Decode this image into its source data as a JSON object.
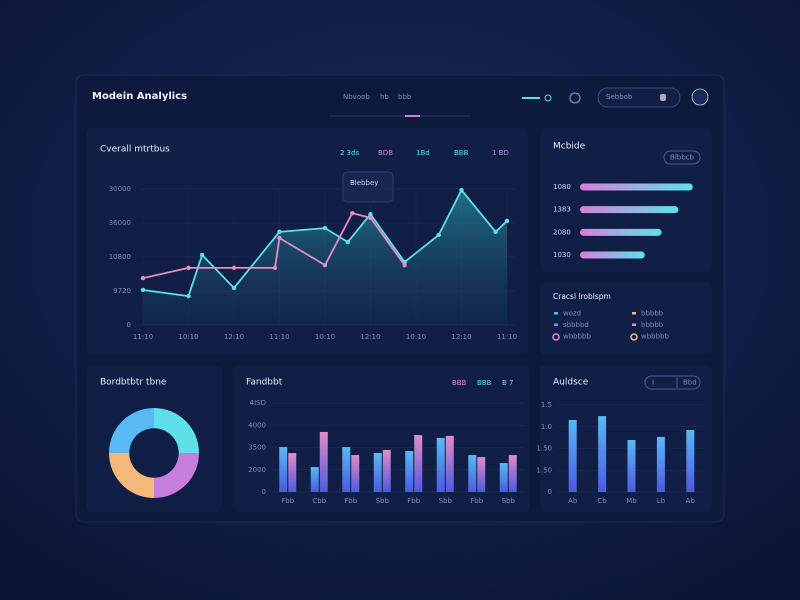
{
  "header": {
    "title": "Modein Analylics",
    "nav": [
      "Nbvoob",
      "hb",
      "bbb"
    ],
    "search": "Sebbob"
  },
  "overview": {
    "title": "Cverall mtrtbus",
    "legend": [
      {
        "name": "2 3ds",
        "color": "#5ee0ea"
      },
      {
        "name": "BDB",
        "color": "#c77ddb"
      },
      {
        "name": "1Bd",
        "color": "#5ee0ea"
      },
      {
        "name": "BBB",
        "color": "#5ee0ea"
      },
      {
        "name": "1 BD",
        "color": "#c77ddb"
      }
    ],
    "tooltip": "Blebbey",
    "chart": {
      "type": "line",
      "xlim": [
        0,
        8
      ],
      "ylim": [
        0,
        4
      ],
      "xticks": [
        {
          "value": 0,
          "label": "11:10"
        },
        {
          "value": 1,
          "label": "10:10"
        },
        {
          "value": 2,
          "label": "12:10"
        },
        {
          "value": 3,
          "label": "11:10"
        },
        {
          "value": 4,
          "label": "10:10"
        },
        {
          "value": 5,
          "label": "12:10"
        },
        {
          "value": 6,
          "label": "10:10"
        },
        {
          "value": 7,
          "label": "12:10"
        },
        {
          "value": 8,
          "label": "11:10"
        }
      ],
      "yticks": [
        0,
        {
          "value": 1,
          "label": "9720"
        },
        {
          "value": 2,
          "label": "10800"
        },
        {
          "value": 3,
          "label": "36000"
        },
        {
          "value": 4,
          "label": "30000"
        }
      ],
      "grid": true,
      "series": [
        {
          "color": "#5ee0ea",
          "area": true,
          "x": [
            0,
            1,
            1.3,
            2,
            3,
            4,
            4.5,
            5,
            5.75,
            6.5,
            7,
            7.75,
            8
          ],
          "values": [
            1.03,
            0.85,
            2.06,
            1.09,
            2.74,
            2.85,
            2.44,
            3.26,
            1.85,
            2.65,
            3.97,
            2.74,
            3.06
          ]
        },
        {
          "color": "#e58bc5",
          "x": [
            0,
            1,
            2,
            2.9,
            3,
            4,
            4.6,
            5,
            5.75
          ],
          "values": [
            1.38,
            1.68,
            1.68,
            1.68,
            2.56,
            1.76,
            3.29,
            3.15,
            1.76
          ]
        }
      ]
    }
  },
  "progress": {
    "title": "Mcbide",
    "button": "Blbbcb",
    "chart": {
      "type": "bar",
      "orientation": "horizontal",
      "xlim": [
        0,
        100
      ],
      "colors": [
        "#d77fd8",
        "#5ee0ea"
      ],
      "categories": [
        "1080",
        "1383",
        "2080",
        "1030"
      ],
      "values": [
        94,
        82,
        68,
        54
      ]
    }
  },
  "breakdown": {
    "title": "Cracsl lroblspm",
    "items": [
      {
        "label": "wozd",
        "color": "#5ab8f5"
      },
      {
        "label": "bbbbb",
        "color": "#f4b87a"
      },
      {
        "label": "sbbbbd",
        "color": "#7b8cf0"
      },
      {
        "label": "bbbbb",
        "color": "#e58bc5"
      },
      {
        "label": "wbbbbb",
        "color": "#e58bc5",
        "ring": true
      },
      {
        "label": "wbbbbb",
        "color": "#f4b87a",
        "ring": true
      }
    ]
  },
  "distribution": {
    "title": "Bordbtbtr tbne",
    "chart": {
      "type": "pie",
      "donut": true,
      "values": [
        25,
        25,
        25,
        25
      ],
      "colors": [
        "#5ee0ea",
        "#c77ddb",
        "#f4b87a",
        "#5ab8f5"
      ]
    }
  },
  "performance": {
    "title": "Fandbbt",
    "legend": [
      {
        "name": "BBB",
        "color": "#e58bc5"
      },
      {
        "name": "BBB",
        "color": "#5ee0ea"
      },
      {
        "name": "B 7",
        "color": "#5ee0ea"
      }
    ],
    "chart": {
      "type": "bar",
      "ylim": [
        0,
        4
      ],
      "yticks": [
        0,
        {
          "value": 1,
          "label": "2000"
        },
        {
          "value": 2,
          "label": "3500"
        },
        {
          "value": 3,
          "label": "4000"
        },
        {
          "value": 4,
          "label": "4ISD"
        }
      ],
      "categories": [
        "Fbb",
        "Cbb",
        "Fbb",
        "Sbb",
        "Fbb",
        "Sbb",
        "Fbb",
        "Sbb"
      ],
      "series": [
        {
          "color": "#5ab8f5",
          "values": [
            2.02,
            1.12,
            2.02,
            1.75,
            1.84,
            2.43,
            1.66,
            1.3
          ]
        },
        {
          "color": "#e58bc5",
          "values": [
            1.75,
            2.7,
            1.66,
            1.89,
            2.56,
            2.52,
            1.57,
            1.66
          ]
        }
      ]
    }
  },
  "audience": {
    "title": "Auldsce",
    "buttons": [
      "I",
      "Bbd"
    ],
    "chart": {
      "type": "bar",
      "ylim": [
        0,
        4
      ],
      "color": "#5ab8f5",
      "yticks": [
        0,
        {
          "value": 1,
          "label": "1.50"
        },
        {
          "value": 2,
          "label": "1.50"
        },
        {
          "value": 3,
          "label": "1.0"
        },
        {
          "value": 4,
          "label": "1.5"
        }
      ],
      "categories": [
        "Ab",
        "Cb",
        "Mb",
        "Lb",
        "Ab"
      ],
      "values": [
        3.31,
        3.49,
        2.39,
        2.53,
        2.85
      ]
    }
  }
}
